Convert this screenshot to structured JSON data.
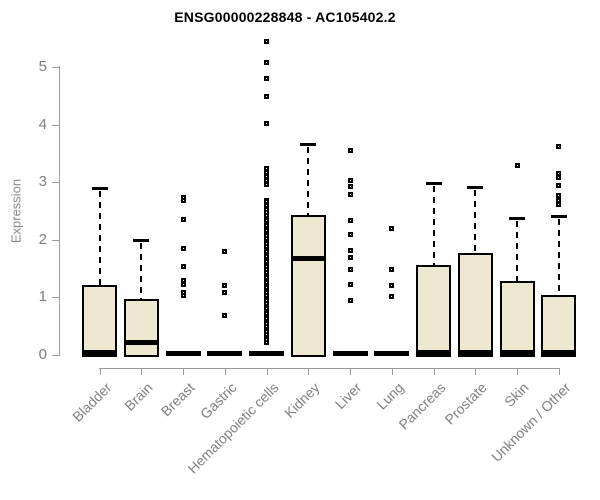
{
  "figure": {
    "title": "ENSG00000228848 - AC105402.2",
    "background": "#ffffff"
  },
  "chart_data": {
    "type": "boxplot",
    "title": "ENSG00000228848 - AC105402.2",
    "ylabel": "Expression",
    "xlabel": "",
    "ylim": [
      0,
      5.5
    ],
    "yticks": [
      0,
      1,
      2,
      3,
      4,
      5
    ],
    "grid": false,
    "legend": false,
    "marker": "open-square",
    "colors": {
      "box_fill": "#ede8cf",
      "box_border": "#000000",
      "median": "#000000",
      "axis_line": "#9a9a9a",
      "tick_text": "#808080",
      "title_text": "#000000"
    },
    "categories": [
      "Bladder",
      "Brain",
      "Breast",
      "Gastric",
      "Hematopoietic cells",
      "Kidney",
      "Liver",
      "Lung",
      "Pancreas",
      "Prostate",
      "Skin",
      "Unknown / Other"
    ],
    "boxes": [
      {
        "category": "Bladder",
        "whisker_low": 0,
        "q1": 0,
        "median": 0.05,
        "q3": 1.22,
        "whisker_high": 2.9,
        "outliers": []
      },
      {
        "category": "Brain",
        "whisker_low": 0,
        "q1": 0,
        "median": 0.21,
        "q3": 0.97,
        "whisker_high": 2.0,
        "outliers": []
      },
      {
        "category": "Breast",
        "whisker_low": 0.03,
        "q1": 0.03,
        "median": 0.03,
        "q3": 0.03,
        "whisker_high": 0.03,
        "outliers": [
          2.73,
          2.69,
          2.36,
          1.85,
          1.53,
          1.3,
          1.22,
          1.09,
          1.04
        ]
      },
      {
        "category": "Gastric",
        "whisker_low": 0.03,
        "q1": 0.03,
        "median": 0.03,
        "q3": 0.03,
        "whisker_high": 0.03,
        "outliers": [
          1.79,
          1.2,
          1.08,
          0.69
        ]
      },
      {
        "category": "Hematopoietic cells",
        "whisker_low": 0.03,
        "q1": 0.03,
        "median": 0.03,
        "q3": 0.03,
        "whisker_high": 0.03,
        "outliers": [
          5.44,
          5.09,
          4.81,
          4.5,
          4.02,
          3.24,
          3.17,
          3.1,
          3.03,
          2.97,
          2.69,
          2.66,
          2.6,
          2.52,
          2.47,
          2.43,
          2.38,
          2.34,
          2.29,
          2.25,
          2.2,
          2.16,
          2.11,
          2.07,
          2.02,
          1.98,
          1.93,
          1.89,
          1.84,
          1.8,
          1.75,
          1.71,
          1.66,
          1.62,
          1.57,
          1.53,
          1.48,
          1.44,
          1.39,
          1.35,
          1.3,
          1.26,
          1.21,
          1.17,
          1.12,
          1.08,
          1.03,
          0.99,
          0.94,
          0.9,
          0.85,
          0.81,
          0.76,
          0.72,
          0.67,
          0.63,
          0.58,
          0.54,
          0.49,
          0.45,
          0.4,
          0.36,
          0.31,
          0.27,
          0.22
        ]
      },
      {
        "category": "Kidney",
        "whisker_low": 0,
        "q1": 0,
        "median": 1.68,
        "q3": 2.44,
        "whisker_high": 3.67,
        "outliers": []
      },
      {
        "category": "Liver",
        "whisker_low": 0.03,
        "q1": 0.03,
        "median": 0.03,
        "q3": 0.03,
        "whisker_high": 0.03,
        "outliers": [
          3.56,
          3.03,
          2.92,
          2.79,
          2.33,
          2.1,
          1.82,
          1.7,
          1.49,
          1.22,
          0.94
        ]
      },
      {
        "category": "Lung",
        "whisker_low": 0.03,
        "q1": 0.03,
        "median": 0.03,
        "q3": 0.03,
        "whisker_high": 0.03,
        "outliers": [
          2.2,
          1.49,
          1.2,
          1.01
        ]
      },
      {
        "category": "Pancreas",
        "whisker_low": 0,
        "q1": 0,
        "median": 0.05,
        "q3": 1.56,
        "whisker_high": 2.99,
        "outliers": []
      },
      {
        "category": "Prostate",
        "whisker_low": 0,
        "q1": 0,
        "median": 0.05,
        "q3": 1.78,
        "whisker_high": 2.92,
        "outliers": []
      },
      {
        "category": "Skin",
        "whisker_low": 0,
        "q1": 0,
        "median": 0.05,
        "q3": 1.29,
        "whisker_high": 2.38,
        "outliers": [
          3.3
        ]
      },
      {
        "category": "Unknown / Other",
        "whisker_low": 0,
        "q1": 0,
        "median": 0.05,
        "q3": 1.04,
        "whisker_high": 2.42,
        "outliers": [
          3.63,
          3.15,
          3.08,
          2.95,
          2.77,
          2.69,
          2.62
        ]
      }
    ]
  }
}
